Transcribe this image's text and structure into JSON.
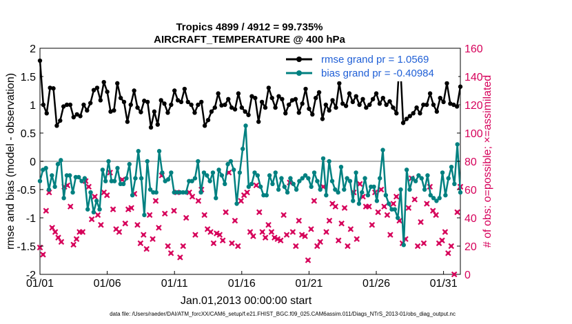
{
  "chart_data": {
    "type": "line",
    "title": "Tropics 4899 / 4912 = 99.735%",
    "subtitle": "AIRCRAFT_TEMPERATURE @ 400 hPa",
    "xlabel": "Jan.01,2013 00:00:00 start",
    "ylabel": "rmse and bias (model - observation)",
    "y2label": "# of obs: o=possible; ×=assimilated",
    "footer": "data file: /Users/raeder/DAI/ATM_forcXX/CAM6_setup/f.e21.FHIST_BGC.f09_025.CAM6assim.011/Diags_NTrS_2013-01/obs_diag_output.nc",
    "x_tick_labels": [
      "01/01",
      "01/06",
      "01/11",
      "01/16",
      "01/21",
      "01/26",
      "01/31"
    ],
    "x_tick_values": [
      1,
      6,
      11,
      16,
      21,
      26,
      31
    ],
    "xlim": [
      1,
      32.25
    ],
    "ylim": [
      -2,
      2
    ],
    "y_ticks": [
      -2,
      -1.5,
      -1,
      -0.5,
      0,
      0.5,
      1,
      1.5,
      2
    ],
    "y_tick_labels": [
      "-2",
      "-1.5",
      "-1",
      "-0.5",
      "0",
      "0.5",
      "1",
      "1.5",
      "2"
    ],
    "y2lim": [
      0,
      160
    ],
    "y2_ticks": [
      0,
      20,
      40,
      60,
      80,
      100,
      120,
      140,
      160
    ],
    "y2_tick_labels": [
      "0",
      "20",
      "40",
      "60",
      "80",
      "100",
      "120",
      "140",
      "160"
    ],
    "legend_position": "top-right",
    "colors": {
      "rmse": "#000000",
      "bias": "#008080",
      "obs": "#d6005a",
      "zero": "#b3b3b3"
    },
    "series": [
      {
        "name": "rmse grand pr = 1.0569",
        "axis": "left",
        "values": [
          1.78,
          1.0,
          0.85,
          1.3,
          1.29,
          0.63,
          0.72,
          0.97,
          1.0,
          1.0,
          0.78,
          0.83,
          0.8,
          1.0,
          0.9,
          1.03,
          1.26,
          1.3,
          1.08,
          1.4,
          1.23,
          0.88,
          0.9,
          1.38,
          1.12,
          1.05,
          0.7,
          1.0,
          1.25,
          0.95,
          0.87,
          1.07,
          1.05,
          0.6,
          0.88,
          0.65,
          1.08,
          1.02,
          0.86,
          1.0,
          1.25,
          1.08,
          1.05,
          1.28,
          1.05,
          1.0,
          0.86,
          1.0,
          1.05,
          0.63,
          0.73,
          0.88,
          0.95,
          1.2,
          0.99,
          1.0,
          1.1,
          0.95,
          0.92,
          1.2,
          0.95,
          0.88,
          0.82,
          1.15,
          1.12,
          0.7,
          1.05,
          0.95,
          1.3,
          1.12,
          0.95,
          1.15,
          1.1,
          0.85,
          1.0,
          1.08,
          1.1,
          0.86,
          1.02,
          1.28,
          0.93,
          0.83,
          1.12,
          1.22,
          0.75,
          1.0,
          0.9,
          1.08,
          0.95,
          1.38,
          1.02,
          0.98,
          1.2,
          1.05,
          1.15,
          1.0,
          1.1,
          0.95,
          1.0,
          1.1,
          1.2,
          1.02,
          1.12,
          1.0,
          1.06,
          0.95,
          0.85,
          1.88,
          0.68,
          0.75,
          0.8,
          0.85,
          0.95,
          0.85,
          1.0,
          1.0,
          1.2,
          1.0,
          0.88,
          1.12,
          1.05,
          1.38,
          1.02,
          1.0,
          0.97,
          1.32
        ]
      },
      {
        "name": "bias grand pr = -0.40984",
        "axis": "left",
        "values": [
          -0.35,
          -0.15,
          -0.12,
          -0.5,
          -0.25,
          -0.45,
          -0.05,
          0.02,
          -0.65,
          -0.25,
          -0.25,
          -0.55,
          -0.28,
          -0.28,
          -0.35,
          -0.3,
          -0.85,
          -0.55,
          -0.9,
          -0.7,
          -0.85,
          -0.15,
          -0.35,
          0.0,
          -0.35,
          -0.35,
          -0.12,
          -0.4,
          -0.4,
          -0.3,
          -0.05,
          -0.6,
          -0.3,
          0.18,
          -0.3,
          -0.95,
          0.0,
          -0.5,
          -0.55,
          -0.55,
          0.18,
          -0.2,
          -0.35,
          -0.32,
          -0.2,
          -0.55,
          -0.55,
          -0.55,
          -0.55,
          -0.55,
          -0.35,
          -0.35,
          -0.3,
          0.0,
          -0.55,
          -0.2,
          -0.25,
          -0.35,
          -0.2,
          -0.65,
          -0.15,
          -0.25,
          -0.4,
          -0.05,
          0.0,
          -0.15,
          -0.75,
          -0.2,
          0.22,
          0.63,
          -0.45,
          -0.4,
          -0.2,
          -0.25,
          -0.45,
          -0.6,
          -0.6,
          -0.25,
          -0.4,
          -0.2,
          -0.5,
          -0.3,
          -0.45,
          -0.55,
          -0.3,
          -0.4,
          -0.5,
          -0.35,
          -0.3,
          -0.25,
          -0.3,
          -0.45,
          -0.2,
          -0.35,
          -0.5,
          0.05,
          -0.6,
          0.0,
          -0.35,
          -0.5,
          -0.55,
          -0.1,
          -0.5,
          -0.3,
          -0.35,
          -0.7,
          -0.2,
          -0.75,
          -0.55,
          -0.3,
          -0.6,
          -0.45,
          -0.45,
          -0.7,
          -0.3,
          0.2,
          -0.6,
          -0.75,
          -0.85,
          -0.85,
          -1.0,
          -0.5,
          -1.48,
          -0.15,
          -0.5,
          -0.3,
          -0.35,
          -0.25,
          -0.3,
          -0.5,
          -0.25,
          -0.6,
          -0.65,
          -0.7,
          -0.65,
          -0.2,
          -0.6,
          -0.3,
          -0.1,
          -0.4,
          0.3,
          -0.55
        ]
      },
      {
        "name": "obs assimilated",
        "axis": "right",
        "marker": "x",
        "values": [
          19,
          14,
          45,
          58,
          33,
          30,
          26,
          23,
          62,
          63,
          48,
          21,
          25,
          30,
          30,
          66,
          62,
          39,
          55,
          42,
          35,
          58,
          56,
          72,
          46,
          32,
          30,
          67,
          36,
          46,
          47,
          57,
          35,
          22,
          28,
          18,
          42,
          25,
          52,
          33,
          70,
          43,
          20,
          15,
          45,
          58,
          12,
          20,
          40,
          58,
          55,
          28,
          52,
          60,
          42,
          32,
          30,
          22,
          29,
          28,
          24,
          44,
          72,
          22,
          38,
          20,
          52,
          56,
          58,
          30,
          27,
          63,
          44,
          30,
          26,
          35,
          30,
          26,
          25,
          24,
          42,
          28,
          65,
          30,
          20,
          38,
          28,
          27,
          10,
          32,
          52,
          20,
          23,
          62,
          30,
          38,
          50,
          48,
          24,
          36,
          47,
          20,
          32,
          58,
          25,
          64,
          55,
          48,
          48,
          35,
          58,
          44,
          60,
          48,
          42,
          28,
          50,
          55,
          38,
          22,
          25,
          47,
          68,
          53,
          20,
          37,
          22,
          50,
          62,
          45,
          42,
          22,
          24,
          30,
          15,
          20,
          0,
          44,
          62
        ]
      }
    ],
    "zero_line": 0
  }
}
